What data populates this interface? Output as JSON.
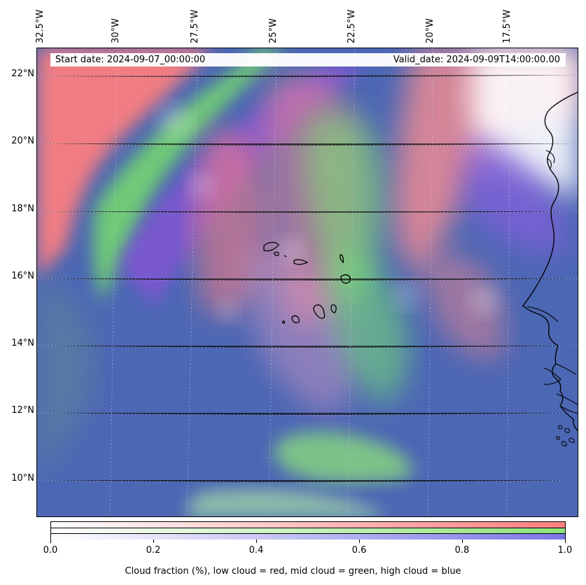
{
  "map": {
    "start_date": "Start date: 2024-09-07_00:00:00",
    "valid_date": "Valid_date: 2024-09-09T14:00:00.00",
    "longitude_labels": [
      "32.5°W",
      "30°W",
      "27.5°W",
      "25°W",
      "22.5°W",
      "20°W",
      "17.5°W"
    ],
    "latitude_labels": [
      "22°N",
      "20°N",
      "18°N",
      "16°N",
      "14°N",
      "12°N",
      "10°N"
    ],
    "gridlines": true,
    "projection_note": "cartopy-style map with coastlines"
  },
  "colorbar": {
    "tick_labels": [
      "0.0",
      "0.2",
      "0.4",
      "0.6",
      "0.8",
      "1.0"
    ],
    "caption": "Cloud fraction (%), low cloud = red, mid cloud = green, high cloud = blue",
    "low_color": "#ff7f7f",
    "mid_color": "#8ee37a",
    "high_color": "#7b76e6"
  },
  "colors": {
    "ocean_base": "#4c67b4",
    "coastline": "#000000",
    "grid": "#bfc7dd"
  },
  "icons": {
    "landmass": "coastline-shape"
  }
}
